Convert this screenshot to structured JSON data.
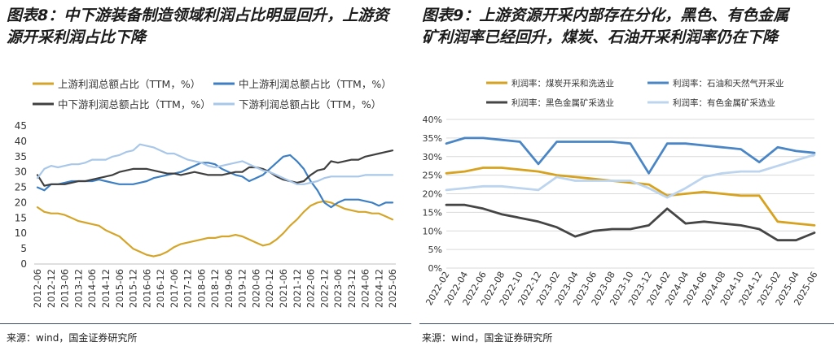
{
  "panels": [
    {
      "title_lines": [
        "图表8：中下游装备制造领域利润占比明显回升，上游资",
        "源开采利润占比下降"
      ],
      "source": "来源：wind，国金证券研究所"
    },
    {
      "title_lines": [
        "图表9：上游资源开采内部存在分化，黑色、有色金属",
        "矿利润率已经回升，煤炭、石油开采利润率仍在下降"
      ],
      "source": "来源：wind，国金证券研究所"
    }
  ],
  "chart_data": [
    {
      "type": "line",
      "ylim": [
        0,
        45
      ],
      "yticks": [
        0,
        5,
        10,
        15,
        20,
        25,
        30,
        35,
        40,
        45
      ],
      "y_tick_labels": [
        "0",
        "5",
        "10",
        "15",
        "20",
        "25",
        "30",
        "35",
        "40",
        "45"
      ],
      "grid": false,
      "legend_position": "top",
      "x_tick_labels": [
        "2012-06",
        "2012-12",
        "2013-06",
        "2013-12",
        "2014-06",
        "2014-12",
        "2015-06",
        "2015-12",
        "2016-06",
        "2016-12",
        "2017-06",
        "2017-12",
        "2018-06",
        "2018-12",
        "2019-06",
        "2019-12",
        "2020-06",
        "2020-12",
        "2021-06",
        "2021-12",
        "2022-06",
        "2022-12",
        "2023-06",
        "2023-12",
        "2024-06",
        "2024-12",
        "2025-06"
      ],
      "x": [
        "2012-06",
        "2012-09",
        "2012-12",
        "2013-03",
        "2013-06",
        "2013-09",
        "2013-12",
        "2014-03",
        "2014-06",
        "2014-09",
        "2014-12",
        "2015-03",
        "2015-06",
        "2015-09",
        "2015-12",
        "2016-03",
        "2016-06",
        "2016-09",
        "2016-12",
        "2017-03",
        "2017-06",
        "2017-09",
        "2017-12",
        "2018-03",
        "2018-06",
        "2018-09",
        "2018-12",
        "2019-03",
        "2019-06",
        "2019-09",
        "2019-12",
        "2020-03",
        "2020-06",
        "2020-09",
        "2020-12",
        "2021-03",
        "2021-06",
        "2021-09",
        "2021-12",
        "2022-03",
        "2022-06",
        "2022-09",
        "2022-12",
        "2023-03",
        "2023-06",
        "2023-09",
        "2023-12",
        "2024-03",
        "2024-06",
        "2024-09",
        "2024-12",
        "2025-03",
        "2025-06"
      ],
      "series": [
        {
          "name": "上游利润总额占比（TTM，%）",
          "color": "#d4a52a",
          "values": [
            18.5,
            17,
            16.5,
            16.5,
            16,
            15,
            14,
            13.5,
            13,
            12.5,
            11,
            10,
            9,
            7,
            5,
            4,
            3,
            2.5,
            3,
            4,
            5.5,
            6.5,
            7,
            7.5,
            8,
            8.5,
            8.5,
            9,
            9,
            9.5,
            9,
            8,
            7,
            6,
            6.5,
            8,
            10,
            12.5,
            14.5,
            17,
            19,
            20,
            20.5,
            20,
            19,
            18,
            17.5,
            17,
            17,
            16.5,
            16.5,
            15.5,
            14.5
          ]
        },
        {
          "name": "中上游利润总额占比（TTM，%）",
          "color": "#3d7fc2",
          "values": [
            25,
            24,
            26,
            26,
            26.5,
            27,
            27,
            27,
            27,
            27.5,
            27,
            26.5,
            26,
            26,
            26,
            26.5,
            27,
            28,
            28.5,
            29,
            29.5,
            30,
            31,
            32,
            33,
            33,
            32.5,
            31,
            30,
            29,
            28.5,
            27,
            28,
            29,
            31,
            33,
            35,
            35.5,
            33.5,
            31,
            27,
            24,
            20,
            18.5,
            20,
            21,
            21,
            21,
            20.5,
            20,
            19,
            20,
            20
          ]
        },
        {
          "name": "中下游利润总额占比（TTM，%）",
          "color": "#404040",
          "values": [
            29,
            25.5,
            26,
            26,
            26,
            26.5,
            27,
            27,
            27.5,
            28,
            28.5,
            29,
            30,
            30.5,
            31,
            31,
            31,
            30.5,
            30,
            29.5,
            29.5,
            29,
            29.5,
            30,
            29.5,
            29,
            29,
            29,
            29.5,
            30,
            30,
            31.5,
            31.5,
            31,
            30,
            28.5,
            27.5,
            27,
            26.5,
            27,
            29,
            30.5,
            31,
            33.5,
            33,
            33.5,
            34,
            34,
            35,
            35.5,
            36,
            36.5,
            37
          ]
        },
        {
          "name": "下游利润总额占比（TTM，%）",
          "color": "#a9c7e8",
          "values": [
            28,
            31,
            32,
            31.5,
            32,
            32.5,
            32.5,
            33,
            34,
            34,
            34,
            35,
            35.5,
            36.5,
            37,
            39,
            38.5,
            38,
            37,
            36,
            36,
            35,
            34,
            33.5,
            33,
            32,
            31.5,
            32,
            32.5,
            33,
            33.5,
            32.5,
            31.5,
            30.5,
            30,
            29,
            28,
            27,
            26,
            26,
            26.5,
            27,
            28,
            28.5,
            28.5,
            28.5,
            28.5,
            28.5,
            29,
            29,
            29,
            29,
            29
          ]
        }
      ]
    },
    {
      "type": "line",
      "ylim": [
        0,
        40
      ],
      "yticks": [
        0,
        5,
        10,
        15,
        20,
        25,
        30,
        35,
        40
      ],
      "y_tick_labels": [
        "0%",
        "5%",
        "10%",
        "15%",
        "20%",
        "25%",
        "30%",
        "35%",
        "40%"
      ],
      "grid": true,
      "legend_position": "top",
      "x_tick_labels": [
        "2022-02",
        "2022-04",
        "2022-06",
        "2022-08",
        "2022-10",
        "2022-12",
        "2023-02",
        "2023-04",
        "2023-06",
        "2023-08",
        "2023-10",
        "2023-12",
        "2024-02",
        "2024-04",
        "2024-06",
        "2024-08",
        "2024-10",
        "2024-12",
        "2025-02",
        "2025-04",
        "2025-06"
      ],
      "x": [
        "2022-02",
        "2022-04",
        "2022-06",
        "2022-08",
        "2022-10",
        "2022-12",
        "2023-02",
        "2023-04",
        "2023-06",
        "2023-08",
        "2023-10",
        "2023-12",
        "2024-02",
        "2024-04",
        "2024-06",
        "2024-08",
        "2024-10",
        "2024-12",
        "2025-02",
        "2025-04",
        "2025-06"
      ],
      "series": [
        {
          "name": "利润率：煤炭开采和洗选业",
          "color": "#d6a21f",
          "values": [
            25.5,
            26,
            27,
            27,
            26.5,
            26,
            25,
            24.5,
            24,
            23.5,
            23,
            22.5,
            19.5,
            20,
            20.5,
            20,
            19.5,
            19.5,
            12.5,
            12,
            11.5
          ]
        },
        {
          "name": "利润率：石油和天然气开采业",
          "color": "#4a86c5",
          "values": [
            33.5,
            35,
            35,
            34.5,
            34,
            28,
            34,
            34,
            34,
            34,
            33.5,
            25.5,
            33.5,
            33.5,
            33,
            32.5,
            32,
            28.5,
            32.5,
            31.5,
            31
          ]
        },
        {
          "name": "利润率：黑色金属矿采选业",
          "color": "#454545",
          "values": [
            17,
            17,
            16,
            14.5,
            13.5,
            12.5,
            11,
            8.5,
            10,
            10.5,
            10.5,
            11.5,
            16,
            12,
            12.5,
            12,
            11.5,
            10.5,
            7.5,
            7.5,
            9.5
          ]
        },
        {
          "name": "利润率：有色金属矿采选业",
          "color": "#bcd4ee",
          "values": [
            21,
            21.5,
            22,
            22,
            21.5,
            21,
            24.5,
            23.5,
            23.5,
            23.5,
            23.5,
            21.5,
            19,
            21.5,
            24.5,
            25.5,
            26,
            26,
            27.5,
            29,
            30.5
          ]
        }
      ]
    }
  ]
}
